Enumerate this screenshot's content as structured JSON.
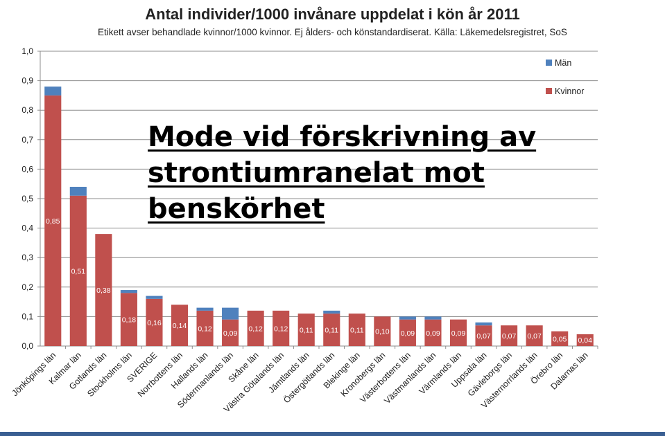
{
  "chart_data": {
    "type": "bar",
    "stacked": true,
    "title": "Antal individer/1000 invånare uppdelat i kön år 2011",
    "subtitle": "Etikett avser behandlade kvinnor/1000 kvinnor. Ej ålders- och könstandardiserat. Källa: Läkemedelsregistret, SoS",
    "ylim": [
      0,
      1.0
    ],
    "yticks": [
      "0,0",
      "0,1",
      "0,2",
      "0,3",
      "0,4",
      "0,5",
      "0,6",
      "0,7",
      "0,8",
      "0,9",
      "1,0"
    ],
    "grid": true,
    "legend_position": "top-right",
    "categories": [
      "Jönköpings län",
      "Kalmar län",
      "Gotlands län",
      "Stockholms län",
      "SVERIGE",
      "Norrbottens län",
      "Hallands län",
      "Södermanlands län",
      "Skåne län",
      "Västra Götalands län",
      "Jämtlands län",
      "Östergötlands län",
      "Blekinge län",
      "Kronobergs län",
      "Västerbottens län",
      "Västmanlands län",
      "Värmlands län",
      "Uppsala län",
      "Gävleborgs län",
      "Västernorrlands län",
      "Örebro län",
      "Dalarnas län"
    ],
    "series": [
      {
        "name": "Kvinnor",
        "color": "#c0504d",
        "values": [
          0.85,
          0.51,
          0.38,
          0.18,
          0.16,
          0.14,
          0.12,
          0.09,
          0.12,
          0.12,
          0.11,
          0.11,
          0.11,
          0.1,
          0.09,
          0.09,
          0.09,
          0.07,
          0.07,
          0.07,
          0.05,
          0.04
        ],
        "labels": [
          "0,85",
          "0,51",
          "0,38",
          "0,18",
          "0,16",
          "0,14",
          "0,12",
          "0,09",
          "0,12",
          "0,12",
          "0,11",
          "0,11",
          "0,11",
          "0,10",
          "0,09",
          "0,09",
          "0,09",
          "0,07",
          "0,07",
          "0,07",
          "0,05",
          "0,04"
        ]
      },
      {
        "name": "Män",
        "color": "#4f81bd",
        "values": [
          0.03,
          0.03,
          0.0,
          0.01,
          0.01,
          0.0,
          0.01,
          0.04,
          0.0,
          0.0,
          0.0,
          0.01,
          0.0,
          0.0,
          0.01,
          0.01,
          0.0,
          0.01,
          0.0,
          0.0,
          0.0,
          0.0
        ]
      }
    ]
  },
  "overlay": {
    "lines": [
      "Mode vid förskrivning av",
      "strontiumranelat mot",
      "benskörhet"
    ]
  }
}
